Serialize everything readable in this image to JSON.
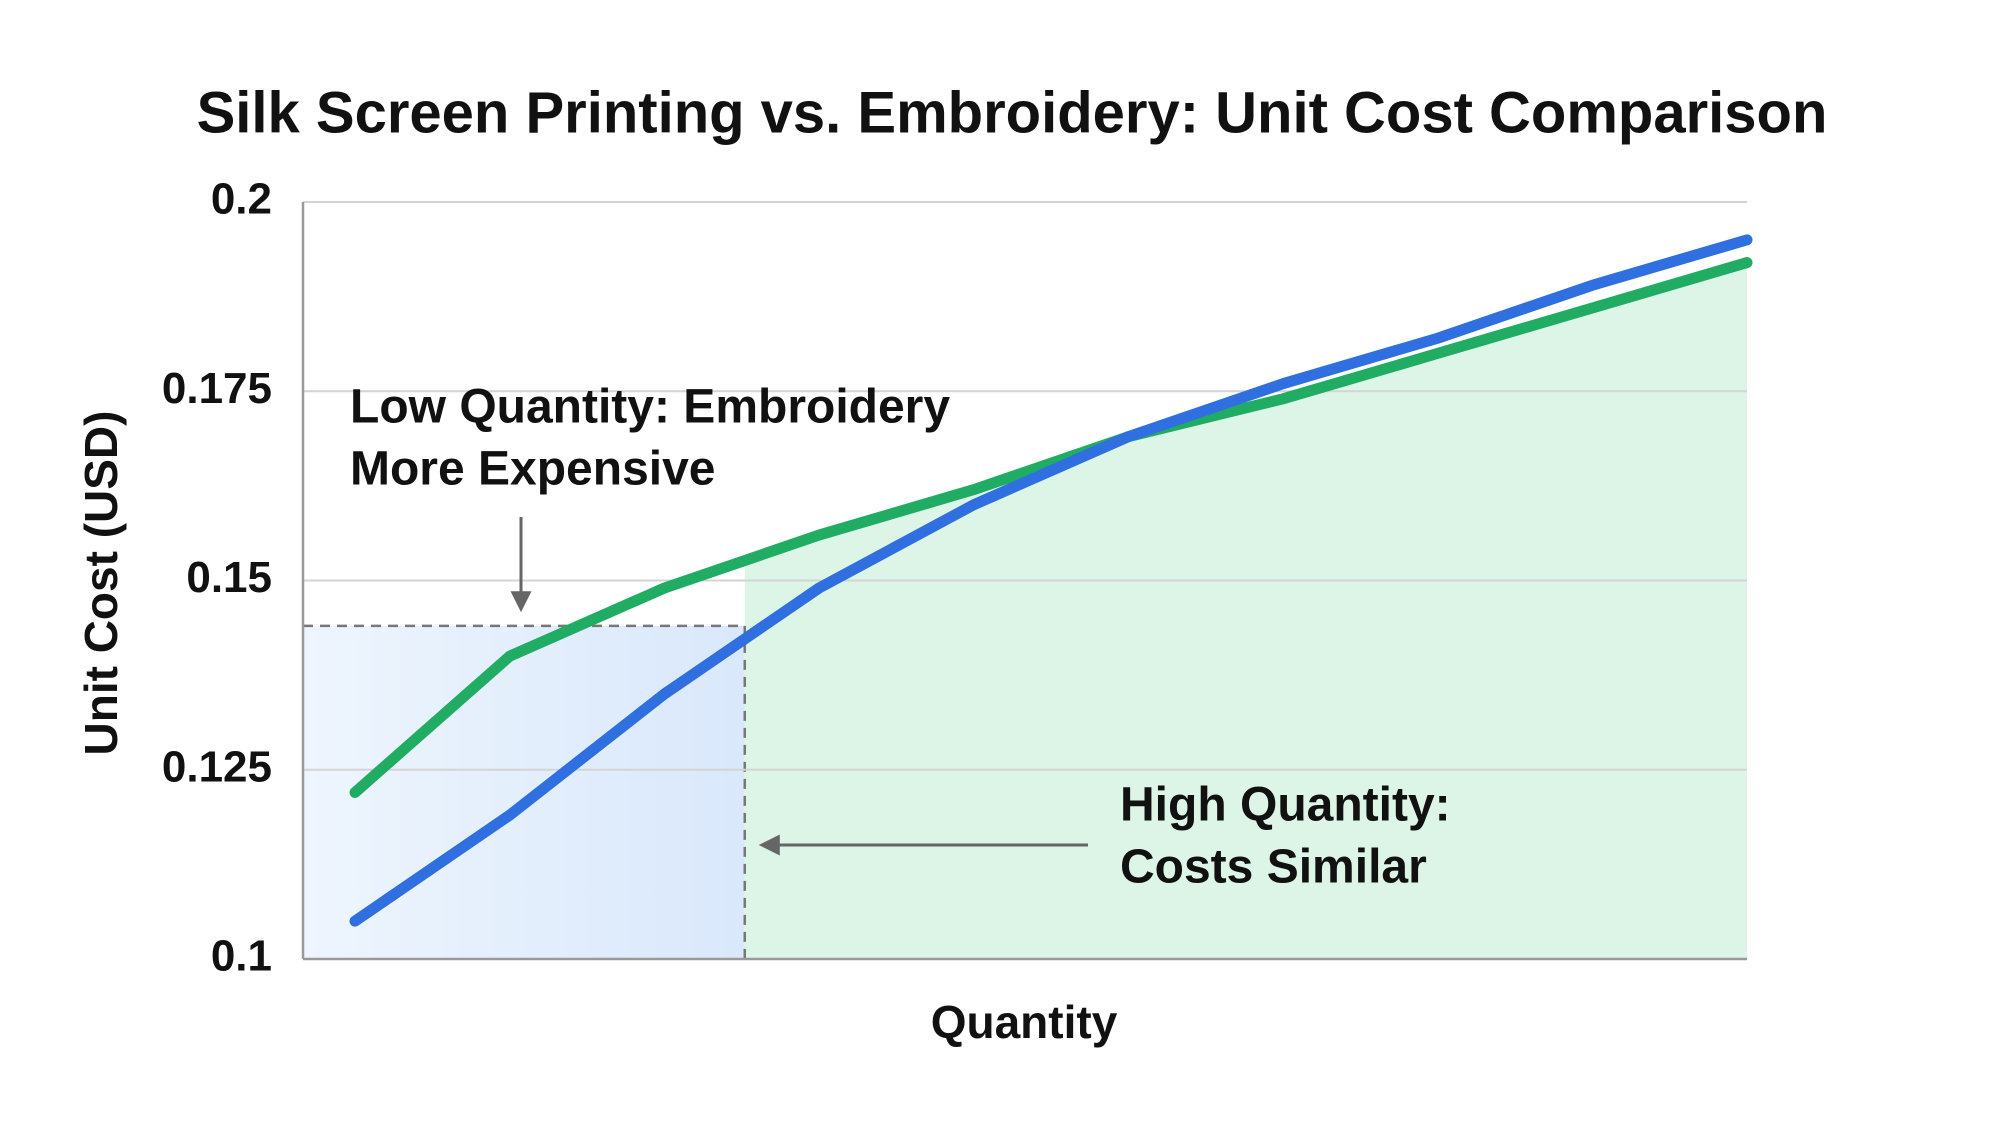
{
  "chart_data": {
    "type": "line",
    "title": "Silk Screen Printing vs. Embroidery: Unit Cost Comparison",
    "x_label": "Quantity",
    "y_label": "Unit Cost (USD)",
    "series": [
      {
        "color": "#2f6fe0",
        "values": [
          0.105,
          0.119,
          0.135,
          0.149,
          0.16,
          0.169,
          0.176,
          0.182,
          0.189,
          0.195
        ]
      },
      {
        "color": "#20ad63",
        "values": [
          0.122,
          0.14,
          0.149,
          0.156,
          0.162,
          0.169,
          0.174,
          0.18,
          0.186,
          0.192
        ]
      }
    ],
    "ylim": [
      0.1,
      0.2
    ],
    "yticks": [
      0.1,
      0.125,
      0.15,
      0.175,
      0.2
    ],
    "grid": true,
    "highlight": {
      "y": 0.144,
      "x": 2.52
    },
    "annotations": [
      {
        "lines": [
          "Low Quantity: Embroidery",
          "More Expensive"
        ]
      },
      {
        "lines": [
          "High Quantity:",
          "Costs Similar"
        ]
      }
    ]
  }
}
